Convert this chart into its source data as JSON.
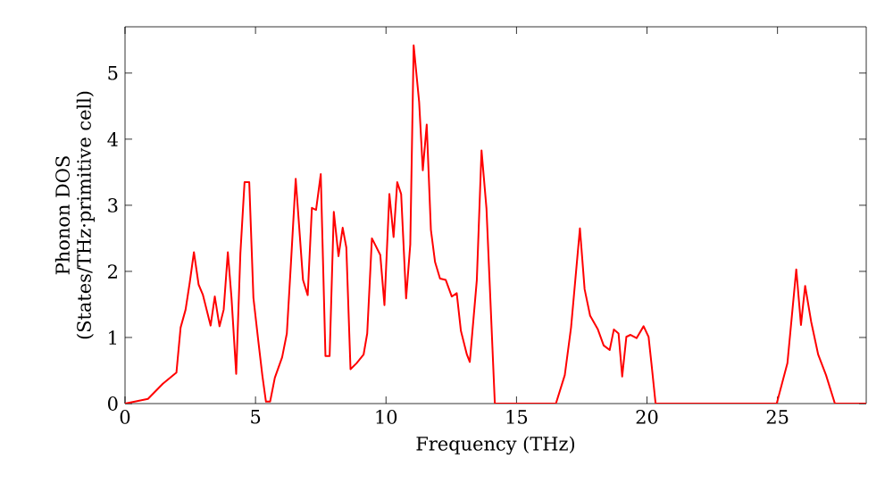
{
  "chart_data": {
    "type": "line",
    "xlabel": "Frequency (THz)",
    "ylabel": "Phonon DOS\n(States/THz·primitive cell)",
    "xlim": [
      0,
      28.4
    ],
    "ylim": [
      0,
      5.7
    ],
    "xticks": [
      0,
      5,
      10,
      15,
      20,
      25
    ],
    "yticks": [
      0,
      1,
      2,
      3,
      4,
      5
    ],
    "marker": "none",
    "line_style": "solid",
    "series": [
      {
        "color": "#ff0000",
        "x": [
          0,
          0.88,
          1.45,
          1.97,
          2.13,
          2.32,
          2.48,
          2.64,
          2.82,
          2.98,
          3.28,
          3.44,
          3.62,
          3.78,
          3.94,
          4.08,
          4.26,
          4.42,
          4.58,
          4.76,
          4.92,
          5.1,
          5.26,
          5.4,
          5.56,
          5.74,
          6.02,
          6.2,
          6.36,
          6.54,
          6.82,
          7.0,
          7.16,
          7.32,
          7.5,
          7.68,
          7.84,
          8.0,
          8.18,
          8.34,
          8.48,
          8.64,
          8.87,
          9.14,
          9.28,
          9.46,
          9.78,
          9.94,
          10.13,
          10.29,
          10.43,
          10.58,
          10.77,
          10.93,
          11.06,
          11.27,
          11.41,
          11.56,
          11.72,
          11.88,
          12.07,
          12.29,
          12.52,
          12.71,
          12.87,
          13.1,
          13.21,
          13.48,
          13.66,
          13.85,
          14.17,
          16.51,
          16.85,
          17.09,
          17.43,
          17.61,
          17.82,
          18.12,
          18.34,
          18.57,
          18.73,
          18.91,
          19.05,
          19.21,
          19.37,
          19.6,
          19.87,
          20.06,
          20.17,
          20.33,
          24.97,
          25.38,
          25.72,
          25.9,
          26.06,
          26.29,
          26.56,
          26.86,
          27.2,
          28.4
        ],
        "values": [
          0,
          0.07,
          0.3,
          0.47,
          1.15,
          1.42,
          1.83,
          2.29,
          1.8,
          1.65,
          1.18,
          1.62,
          1.17,
          1.42,
          2.29,
          1.6,
          0.45,
          2.27,
          3.35,
          3.35,
          1.6,
          0.97,
          0.43,
          0.03,
          0.03,
          0.39,
          0.7,
          1.06,
          2.14,
          3.4,
          1.87,
          1.64,
          2.96,
          2.93,
          3.47,
          0.72,
          0.72,
          2.9,
          2.23,
          2.66,
          2.36,
          0.52,
          0.61,
          0.74,
          1.06,
          2.5,
          2.25,
          1.49,
          3.17,
          2.52,
          3.35,
          3.17,
          1.59,
          2.41,
          5.42,
          4.56,
          3.53,
          4.22,
          2.63,
          2.14,
          1.89,
          1.87,
          1.62,
          1.67,
          1.1,
          0.74,
          0.63,
          1.87,
          3.83,
          2.95,
          0,
          0,
          0.43,
          1.15,
          2.65,
          1.73,
          1.33,
          1.12,
          0.88,
          0.81,
          1.12,
          1.06,
          0.41,
          1.01,
          1.04,
          0.99,
          1.17,
          1.01,
          0.61,
          0,
          0,
          0.61,
          2.03,
          1.19,
          1.78,
          1.24,
          0.74,
          0.43,
          0,
          0
        ]
      }
    ]
  }
}
